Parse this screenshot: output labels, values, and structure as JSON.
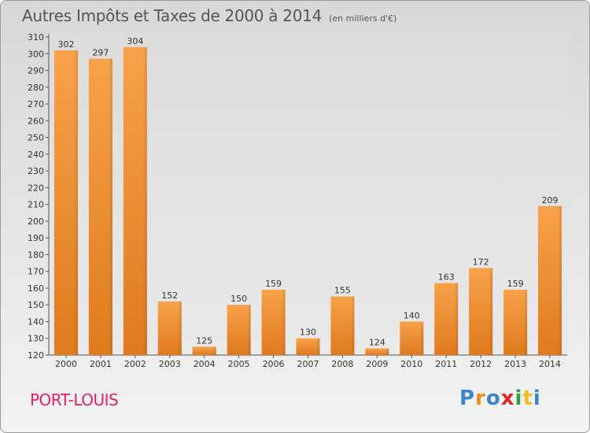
{
  "chart_data": {
    "type": "bar",
    "title": "Autres Impôts et Taxes de 2000 à 2014",
    "unit": "(en milliers d'€)",
    "categories": [
      "2000",
      "2001",
      "2002",
      "2003",
      "2004",
      "2005",
      "2006",
      "2007",
      "2008",
      "2009",
      "2010",
      "2011",
      "2012",
      "2013",
      "2014"
    ],
    "values": [
      302,
      297,
      304,
      152,
      125,
      150,
      159,
      130,
      155,
      124,
      140,
      163,
      172,
      159,
      209
    ],
    "ylim": [
      120,
      310
    ],
    "ytick_step": 10,
    "grid": false,
    "bar_color": "#f0922f"
  },
  "place": {
    "name": "PORT-LOUIS",
    "color": "#e0245e"
  },
  "brand": {
    "letters": [
      "P",
      "r",
      "o",
      "x",
      "i",
      "t",
      "i"
    ],
    "colors": [
      "#3a86c8",
      "#f08a1c",
      "#3a86c8",
      "#e02626",
      "#2e9e44",
      "#f0c020",
      "#3a86c8"
    ]
  }
}
